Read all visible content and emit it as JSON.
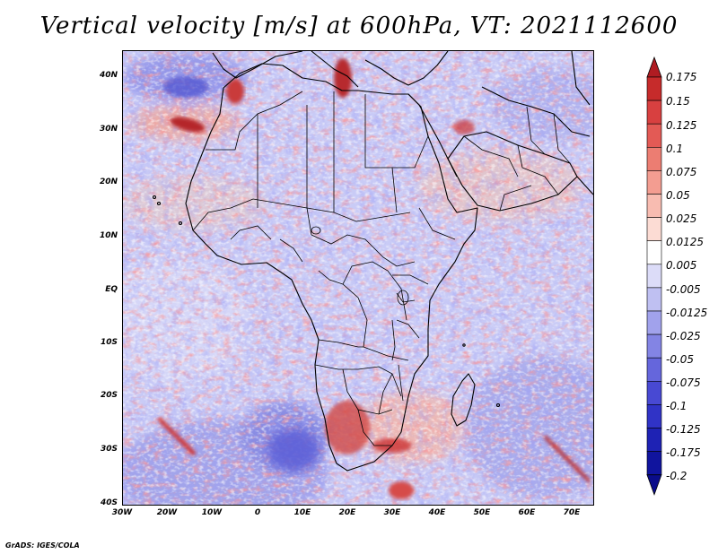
{
  "title": "Vertical velocity [m/s] at 600hPa, VT: 2021112600",
  "credit": "GrADS: IGES/COLA",
  "lat_labels": [
    "40N",
    "30N",
    "20N",
    "10N",
    "EQ",
    "10S",
    "20S",
    "30S",
    "40S"
  ],
  "lon_labels": [
    "30W",
    "20W",
    "10W",
    "0",
    "10E",
    "20E",
    "30E",
    "40E",
    "50E",
    "60E",
    "70E"
  ],
  "colorbar": {
    "levels": [
      "0.175",
      "0.15",
      "0.125",
      "0.1",
      "0.075",
      "0.05",
      "0.025",
      "0.0125",
      "0.005",
      "-0.005",
      "-0.0125",
      "-0.025",
      "-0.05",
      "-0.075",
      "-0.1",
      "-0.125",
      "-0.175",
      "-0.2"
    ],
    "colors": [
      "#b01c22",
      "#c62b2b",
      "#d84040",
      "#e35a55",
      "#ec7d72",
      "#f39d91",
      "#f8bcb1",
      "#fcdcd4",
      "#ffffff",
      "#dcdcf8",
      "#bfc0f2",
      "#a1a2ec",
      "#8384e4",
      "#6566dc",
      "#4849d3",
      "#3033c6",
      "#1e22b4",
      "#10149e",
      "#0a0c8a"
    ]
  }
}
